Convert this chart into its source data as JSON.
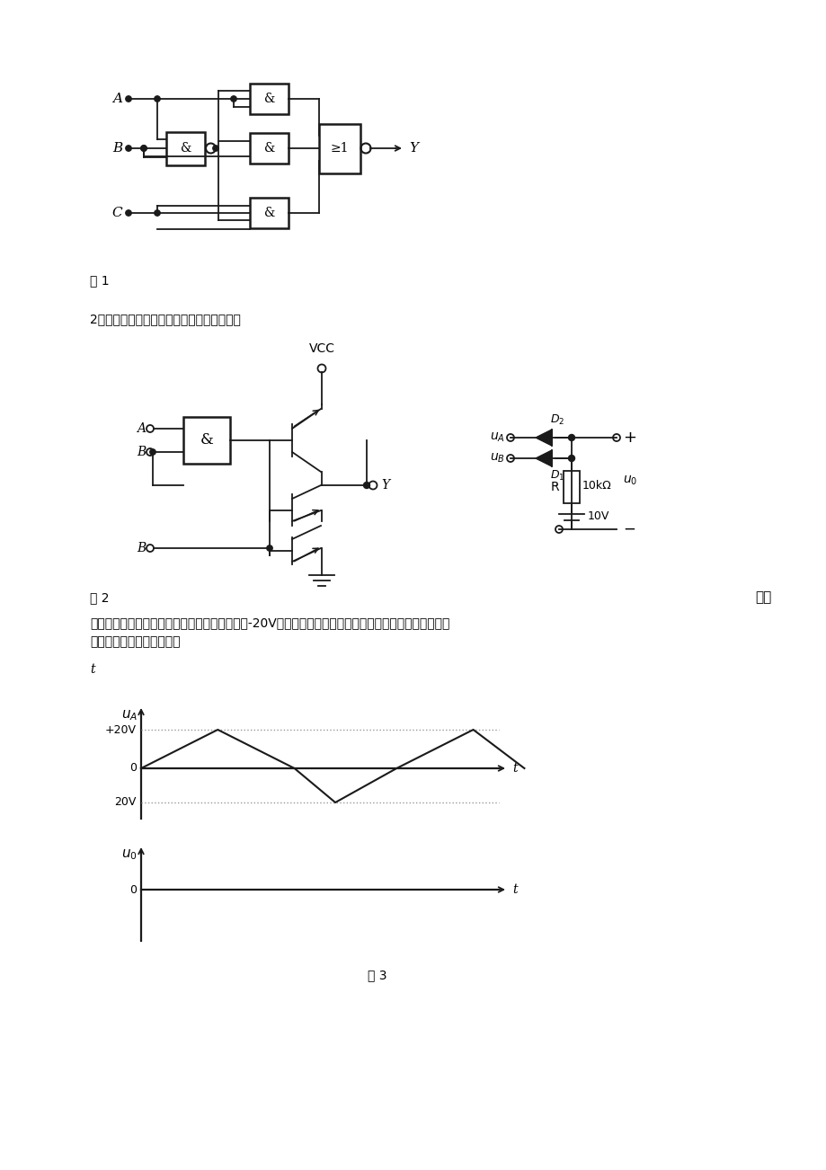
{
  "bg_color": "#ffffff",
  "fig1_label": "图 1",
  "q2_text": "2、写出如图２所示电路的最简逻辑表达式。",
  "fig2_label": "图 2",
  "fig3_label": "图 3",
  "q5_label": "五、",
  "q5_text1": "判断如图３所示电路的逻辑功能。若已知ｕＢ＝-20V，设二极管为理想二极管，试根据ｕＡ输入波形，画",
  "q5_text2": "出ｕ０的输出波形（８分）",
  "t_standalone": "t"
}
